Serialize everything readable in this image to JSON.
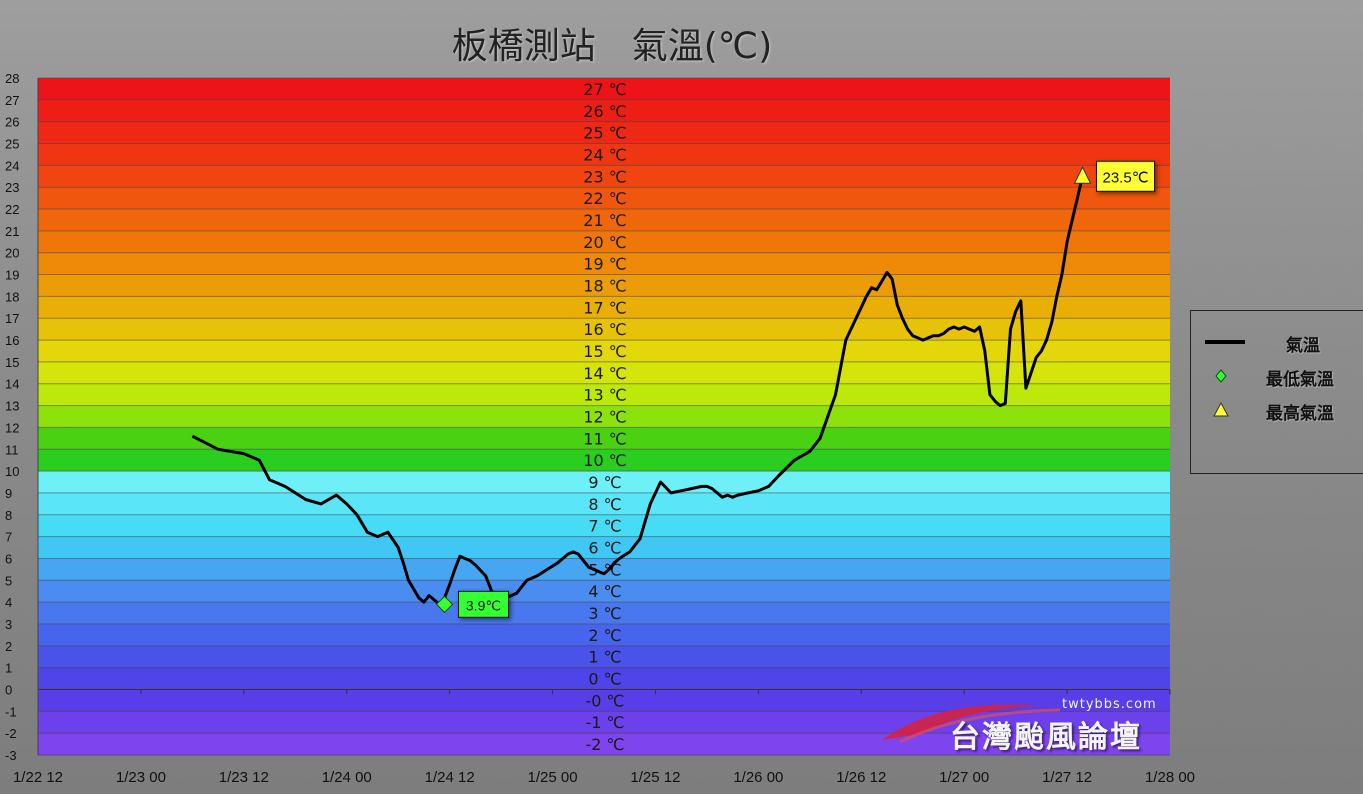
{
  "chart_data": {
    "type": "line",
    "title": "板橋測站　氣溫(℃)",
    "xlabel": "",
    "ylabel": "",
    "ylim": [
      -3,
      28
    ],
    "y_ticks": [
      28,
      27,
      26,
      25,
      24,
      23,
      22,
      21,
      20,
      19,
      18,
      17,
      16,
      15,
      14,
      13,
      12,
      11,
      10,
      9,
      8,
      7,
      6,
      5,
      4,
      3,
      2,
      1,
      0,
      -1,
      -2,
      -3
    ],
    "band_labels": [
      "27 ℃",
      "26 ℃",
      "25 ℃",
      "24 ℃",
      "23 ℃",
      "22 ℃",
      "21 ℃",
      "20 ℃",
      "19 ℃",
      "18 ℃",
      "17 ℃",
      "16 ℃",
      "15 ℃",
      "14 ℃",
      "13 ℃",
      "12 ℃",
      "11 ℃",
      "10 ℃",
      "9 ℃",
      "8 ℃",
      "7 ℃",
      "6 ℃",
      "5 ℃",
      "4 ℃",
      "3 ℃",
      "2 ℃",
      "1 ℃",
      "0 ℃",
      "-0 ℃",
      "-1 ℃",
      "-2 ℃"
    ],
    "x_ticks": [
      "1/22 12",
      "1/23 00",
      "1/23 12",
      "1/24 00",
      "1/24 12",
      "1/25 00",
      "1/25 12",
      "1/26 00",
      "1/26 12",
      "1/27 00",
      "1/27 12",
      "1/28 00"
    ],
    "grid": true,
    "legend_position": "right",
    "series": [
      {
        "name": "氣溫",
        "color": "#000000",
        "x": [
          1.5,
          1.75,
          2.0,
          2.15,
          2.25,
          2.4,
          2.5,
          2.6,
          2.75,
          2.9,
          3.0,
          3.1,
          3.2,
          3.3,
          3.4,
          3.5,
          3.55,
          3.6,
          3.65,
          3.7,
          3.75,
          3.8,
          3.85,
          3.9,
          3.95,
          4.0,
          4.05,
          4.1,
          4.15,
          4.2,
          4.25,
          4.35,
          4.45,
          4.55,
          4.65,
          4.75,
          4.85,
          4.95,
          5.05,
          5.15,
          5.2,
          5.25,
          5.3,
          5.35,
          5.4,
          5.45,
          5.5,
          5.55,
          5.6,
          5.65,
          5.75,
          5.85,
          5.95,
          6.05,
          6.15,
          6.25,
          6.35,
          6.45,
          6.5,
          6.55,
          6.6,
          6.65,
          6.7,
          6.75,
          6.8,
          6.9,
          7.0,
          7.1,
          7.2,
          7.35,
          7.5,
          7.6,
          7.75,
          7.85,
          7.95,
          8.0,
          8.05,
          8.1,
          8.15,
          8.2,
          8.25,
          8.3,
          8.35,
          8.4,
          8.45,
          8.5,
          8.55,
          8.6,
          8.65,
          8.7,
          8.75,
          8.8,
          8.85,
          8.9,
          8.95,
          9.0,
          9.05,
          9.1,
          9.15,
          9.2,
          9.25,
          9.3,
          9.35,
          9.4,
          9.45,
          9.5,
          9.55,
          9.6,
          9.65,
          9.7,
          9.75,
          9.8,
          9.85,
          9.9,
          9.95,
          10.0,
          10.05,
          10.1,
          10.15
        ],
        "values": [
          11.6,
          11.0,
          10.8,
          10.5,
          9.6,
          9.3,
          9.0,
          8.7,
          8.5,
          8.9,
          8.5,
          8.0,
          7.2,
          7.0,
          7.2,
          6.5,
          5.8,
          5.0,
          4.6,
          4.2,
          4.0,
          4.3,
          4.1,
          3.9,
          4.2,
          4.8,
          5.5,
          6.1,
          6.0,
          5.9,
          5.7,
          5.2,
          4.0,
          4.2,
          4.4,
          5.0,
          5.2,
          5.5,
          5.8,
          6.2,
          6.3,
          6.2,
          5.9,
          5.6,
          5.5,
          5.4,
          5.3,
          5.5,
          5.8,
          6.0,
          6.3,
          6.9,
          8.5,
          9.5,
          9.0,
          9.1,
          9.2,
          9.3,
          9.3,
          9.2,
          9.0,
          8.8,
          8.9,
          8.8,
          8.9,
          9.0,
          9.1,
          9.3,
          9.8,
          10.5,
          10.9,
          11.5,
          13.5,
          16.0,
          17.0,
          17.5,
          18.0,
          18.4,
          18.3,
          18.7,
          19.1,
          18.8,
          17.6,
          17.0,
          16.5,
          16.2,
          16.1,
          16.0,
          16.1,
          16.2,
          16.2,
          16.3,
          16.5,
          16.6,
          16.5,
          16.6,
          16.5,
          16.4,
          16.6,
          15.5,
          13.5,
          13.2,
          13.0,
          13.1,
          16.5,
          17.3,
          17.8,
          13.8,
          14.5,
          15.2,
          15.5,
          16.0,
          16.8,
          18.0,
          19.0,
          20.5,
          21.5,
          22.5,
          23.5
        ]
      }
    ],
    "annotations": [
      {
        "label": "3.9℃",
        "series": "最低氣溫",
        "x": 3.95,
        "y": 3.9,
        "color": "#33ff33"
      },
      {
        "label": "23.5℃",
        "series": "最高氣溫",
        "x": 10.15,
        "y": 23.5,
        "color": "#ffff33"
      }
    ]
  },
  "legend": {
    "items": [
      {
        "label": "氣溫",
        "marker": "line",
        "color": "#000000"
      },
      {
        "label": "最低氣溫",
        "marker": "diamond",
        "color": "#33ff33"
      },
      {
        "label": "最高氣溫",
        "marker": "triangle",
        "color": "#ffff33"
      }
    ]
  },
  "watermark": {
    "url": "twtybbs.com",
    "name": "台灣颱風論壇"
  }
}
